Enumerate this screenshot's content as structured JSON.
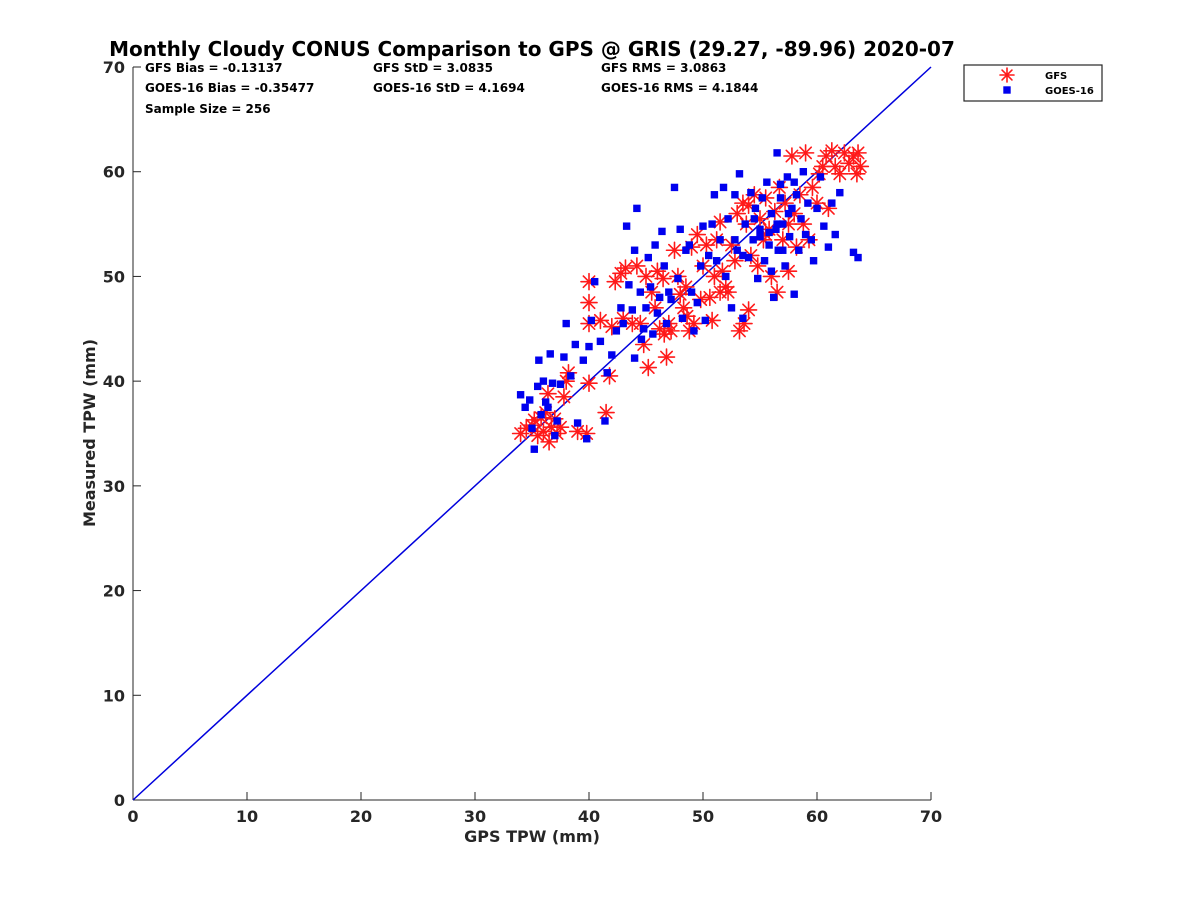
{
  "chart_data": {
    "type": "scatter",
    "title": "Monthly Cloudy CONUS Comparison to GPS @ GRIS (29.27, -89.96) 2020-07",
    "xlabel": "GPS TPW (mm)",
    "ylabel": "Measured TPW (mm)",
    "xlim": [
      0,
      70
    ],
    "ylim": [
      0,
      70
    ],
    "xticks": [
      "0",
      "10",
      "20",
      "30",
      "40",
      "50",
      "60",
      "70"
    ],
    "yticks": [
      "0",
      "10",
      "20",
      "30",
      "40",
      "50",
      "60",
      "70"
    ],
    "grid": false,
    "legend_position": "outside-top-right",
    "stats": [
      {
        "text": "GFS Bias = -0.13137",
        "col": 0,
        "row": 0
      },
      {
        "text": "GFS StD = 3.0835",
        "col": 1,
        "row": 0
      },
      {
        "text": "GFS RMS = 3.0863",
        "col": 2,
        "row": 0
      },
      {
        "text": "GOES-16 Bias = -0.35477",
        "col": 0,
        "row": 1
      },
      {
        "text": "GOES-16 StD = 4.1694",
        "col": 1,
        "row": 1
      },
      {
        "text": "GOES-16 RMS = 4.1844",
        "col": 2,
        "row": 1
      },
      {
        "text": "Sample Size = 256",
        "col": 0,
        "row": 2
      }
    ],
    "reference_line": {
      "x": [
        0,
        70
      ],
      "y": [
        0,
        70
      ],
      "color": "#0000dd"
    },
    "series": [
      {
        "name": "GFS",
        "marker": "asterisk",
        "color": "#ff1a1a",
        "points": [
          [
            34.0,
            35.0
          ],
          [
            34.5,
            35.5
          ],
          [
            35.0,
            35.8
          ],
          [
            35.2,
            36.3
          ],
          [
            35.5,
            34.8
          ],
          [
            35.8,
            36.5
          ],
          [
            36.0,
            35.2
          ],
          [
            36.2,
            37.0
          ],
          [
            36.5,
            34.2
          ],
          [
            36.7,
            35.6
          ],
          [
            37.0,
            36.4
          ],
          [
            37.2,
            35.0
          ],
          [
            37.5,
            35.6
          ],
          [
            36.4,
            38.8
          ],
          [
            37.8,
            38.5
          ],
          [
            38.0,
            40.0
          ],
          [
            38.2,
            40.8
          ],
          [
            39.0,
            35.2
          ],
          [
            39.8,
            35.0
          ],
          [
            40.0,
            39.8
          ],
          [
            40.0,
            45.5
          ],
          [
            40.0,
            47.5
          ],
          [
            40.0,
            49.5
          ],
          [
            41.0,
            45.8
          ],
          [
            41.5,
            37.0
          ],
          [
            41.8,
            40.5
          ],
          [
            42.0,
            45.2
          ],
          [
            42.3,
            49.5
          ],
          [
            42.8,
            50.3
          ],
          [
            43.0,
            46.0
          ],
          [
            43.2,
            50.8
          ],
          [
            43.8,
            45.5
          ],
          [
            44.2,
            51.0
          ],
          [
            44.5,
            45.5
          ],
          [
            44.8,
            43.5
          ],
          [
            45.0,
            50.0
          ],
          [
            45.2,
            41.3
          ],
          [
            45.5,
            48.5
          ],
          [
            45.8,
            47.0
          ],
          [
            46.0,
            50.5
          ],
          [
            46.2,
            45.0
          ],
          [
            46.5,
            49.8
          ],
          [
            46.6,
            44.5
          ],
          [
            46.8,
            42.3
          ],
          [
            47.0,
            45.5
          ],
          [
            47.2,
            44.8
          ],
          [
            47.5,
            52.5
          ],
          [
            47.8,
            50.0
          ],
          [
            48.0,
            48.3
          ],
          [
            48.3,
            47.0
          ],
          [
            48.6,
            46.2
          ],
          [
            48.8,
            44.8
          ],
          [
            49.0,
            52.8
          ],
          [
            49.2,
            45.5
          ],
          [
            49.5,
            54.0
          ],
          [
            49.8,
            47.8
          ],
          [
            50.0,
            51.0
          ],
          [
            50.3,
            53.0
          ],
          [
            50.6,
            48.0
          ],
          [
            50.8,
            45.8
          ],
          [
            51.0,
            50.0
          ],
          [
            51.2,
            53.5
          ],
          [
            51.5,
            55.2
          ],
          [
            51.7,
            50.5
          ],
          [
            52.0,
            49.0
          ],
          [
            52.2,
            48.5
          ],
          [
            52.5,
            53.0
          ],
          [
            52.8,
            51.5
          ],
          [
            53.0,
            56.0
          ],
          [
            53.2,
            44.8
          ],
          [
            53.5,
            57.0
          ],
          [
            53.6,
            45.5
          ],
          [
            53.8,
            55.0
          ],
          [
            54.0,
            46.8
          ],
          [
            54.2,
            52.0
          ],
          [
            54.5,
            57.8
          ],
          [
            54.8,
            51.0
          ],
          [
            55.0,
            55.5
          ],
          [
            55.3,
            53.5
          ],
          [
            55.5,
            57.5
          ],
          [
            55.8,
            54.5
          ],
          [
            56.0,
            50.0
          ],
          [
            56.3,
            56.2
          ],
          [
            56.5,
            48.5
          ],
          [
            56.7,
            58.5
          ],
          [
            57.0,
            53.5
          ],
          [
            57.2,
            57.0
          ],
          [
            57.5,
            55.0
          ],
          [
            57.8,
            61.5
          ],
          [
            58.0,
            56.0
          ],
          [
            58.2,
            52.8
          ],
          [
            58.5,
            57.8
          ],
          [
            58.8,
            55.0
          ],
          [
            59.0,
            61.8
          ],
          [
            59.3,
            53.5
          ],
          [
            59.6,
            58.5
          ],
          [
            60.0,
            57.0
          ],
          [
            60.2,
            59.8
          ],
          [
            60.5,
            60.5
          ],
          [
            60.8,
            61.5
          ],
          [
            61.0,
            56.5
          ],
          [
            61.3,
            62.0
          ],
          [
            61.6,
            60.5
          ],
          [
            62.0,
            59.8
          ],
          [
            62.4,
            61.8
          ],
          [
            62.8,
            60.8
          ],
          [
            63.2,
            61.5
          ],
          [
            63.5,
            59.8
          ],
          [
            63.8,
            60.5
          ],
          [
            63.6,
            61.8
          ],
          [
            57.5,
            50.5
          ],
          [
            55.5,
            54.0
          ],
          [
            54.0,
            56.8
          ],
          [
            51.5,
            48.5
          ],
          [
            48.5,
            49.0
          ]
        ]
      },
      {
        "name": "GOES-16",
        "marker": "square",
        "color": "#0000ee",
        "points": [
          [
            34.0,
            38.7
          ],
          [
            34.4,
            37.5
          ],
          [
            34.8,
            38.2
          ],
          [
            35.0,
            35.5
          ],
          [
            35.2,
            33.5
          ],
          [
            35.5,
            39.5
          ],
          [
            35.6,
            42.0
          ],
          [
            35.8,
            36.8
          ],
          [
            36.0,
            40.0
          ],
          [
            36.2,
            38.0
          ],
          [
            36.4,
            37.5
          ],
          [
            36.6,
            42.6
          ],
          [
            36.8,
            39.8
          ],
          [
            37.0,
            34.8
          ],
          [
            37.2,
            36.2
          ],
          [
            37.5,
            39.7
          ],
          [
            37.8,
            42.3
          ],
          [
            38.0,
            45.5
          ],
          [
            38.4,
            40.5
          ],
          [
            38.8,
            43.5
          ],
          [
            39.0,
            36.0
          ],
          [
            39.5,
            42.0
          ],
          [
            39.8,
            34.5
          ],
          [
            40.0,
            43.3
          ],
          [
            40.2,
            45.8
          ],
          [
            40.5,
            49.5
          ],
          [
            41.0,
            43.8
          ],
          [
            41.4,
            36.2
          ],
          [
            41.6,
            40.8
          ],
          [
            42.0,
            42.5
          ],
          [
            42.4,
            44.8
          ],
          [
            42.8,
            47.0
          ],
          [
            43.0,
            45.5
          ],
          [
            43.3,
            54.8
          ],
          [
            43.5,
            49.2
          ],
          [
            43.8,
            46.8
          ],
          [
            44.0,
            42.2
          ],
          [
            44.0,
            52.5
          ],
          [
            44.2,
            56.5
          ],
          [
            44.5,
            48.5
          ],
          [
            44.6,
            44.0
          ],
          [
            44.8,
            45.0
          ],
          [
            45.0,
            47.0
          ],
          [
            45.2,
            51.8
          ],
          [
            45.4,
            49.0
          ],
          [
            45.6,
            44.5
          ],
          [
            45.8,
            53.0
          ],
          [
            46.0,
            46.5
          ],
          [
            46.2,
            48.0
          ],
          [
            46.4,
            54.3
          ],
          [
            46.6,
            51.0
          ],
          [
            46.8,
            45.5
          ],
          [
            47.0,
            48.5
          ],
          [
            47.2,
            47.8
          ],
          [
            47.5,
            58.5
          ],
          [
            47.8,
            49.8
          ],
          [
            48.0,
            54.5
          ],
          [
            48.2,
            46.0
          ],
          [
            48.5,
            52.5
          ],
          [
            48.8,
            53.0
          ],
          [
            49.0,
            48.5
          ],
          [
            49.2,
            44.8
          ],
          [
            49.5,
            47.5
          ],
          [
            49.8,
            51.0
          ],
          [
            50.0,
            54.8
          ],
          [
            50.2,
            45.8
          ],
          [
            50.5,
            52.0
          ],
          [
            50.8,
            55.0
          ],
          [
            51.0,
            57.8
          ],
          [
            51.2,
            51.5
          ],
          [
            51.5,
            53.5
          ],
          [
            51.8,
            58.5
          ],
          [
            52.0,
            50.0
          ],
          [
            52.2,
            55.5
          ],
          [
            52.5,
            47.0
          ],
          [
            52.8,
            57.8
          ],
          [
            53.0,
            52.5
          ],
          [
            53.2,
            59.8
          ],
          [
            53.5,
            46.0
          ],
          [
            53.7,
            55.0
          ],
          [
            54.0,
            51.8
          ],
          [
            54.2,
            58.0
          ],
          [
            54.4,
            53.5
          ],
          [
            54.6,
            56.5
          ],
          [
            54.8,
            49.8
          ],
          [
            55.0,
            54.5
          ],
          [
            55.2,
            57.5
          ],
          [
            55.4,
            51.5
          ],
          [
            55.6,
            59.0
          ],
          [
            55.8,
            53.0
          ],
          [
            56.0,
            56.0
          ],
          [
            56.2,
            48.0
          ],
          [
            56.4,
            54.5
          ],
          [
            56.5,
            61.8
          ],
          [
            56.6,
            52.5
          ],
          [
            56.8,
            57.5
          ],
          [
            57.0,
            55.0
          ],
          [
            57.2,
            51.0
          ],
          [
            57.4,
            59.5
          ],
          [
            57.6,
            53.8
          ],
          [
            57.8,
            56.5
          ],
          [
            58.0,
            48.3
          ],
          [
            58.2,
            57.8
          ],
          [
            58.4,
            52.5
          ],
          [
            58.6,
            55.5
          ],
          [
            58.8,
            60.0
          ],
          [
            59.0,
            54.0
          ],
          [
            59.2,
            57.0
          ],
          [
            59.5,
            53.5
          ],
          [
            59.7,
            51.5
          ],
          [
            60.0,
            56.5
          ],
          [
            60.3,
            59.5
          ],
          [
            60.6,
            54.8
          ],
          [
            61.0,
            52.8
          ],
          [
            61.3,
            57.0
          ],
          [
            61.6,
            54.0
          ],
          [
            62.0,
            58.0
          ],
          [
            63.2,
            52.3
          ],
          [
            63.6,
            51.8
          ],
          [
            57.0,
            52.5
          ],
          [
            56.0,
            50.5
          ],
          [
            55.0,
            53.8
          ],
          [
            53.5,
            52.0
          ],
          [
            52.8,
            53.5
          ],
          [
            54.5,
            55.5
          ],
          [
            56.5,
            55.0
          ],
          [
            57.5,
            56.0
          ],
          [
            55.8,
            54.2
          ],
          [
            58.0,
            59.0
          ],
          [
            56.8,
            58.8
          ]
        ]
      }
    ]
  }
}
